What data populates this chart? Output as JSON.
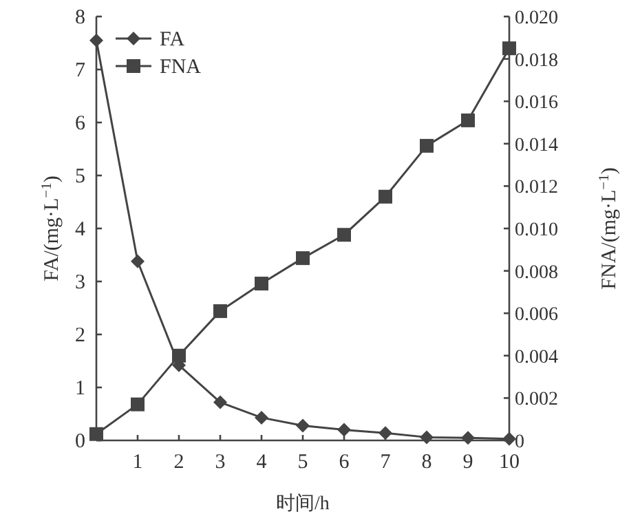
{
  "chart_data": {
    "type": "line",
    "xlabel": "时间/h",
    "ylabel": "FA/(mg·L$^{−1}$)",
    "y2label": "FNA/(mg·L$^{−1}$)",
    "x": [
      0,
      1,
      2,
      3,
      4,
      5,
      6,
      7,
      8,
      9,
      10
    ],
    "series": [
      {
        "name": "FA",
        "color": "#444444",
        "marker": "diamond",
        "values": [
          7.55,
          3.38,
          1.42,
          0.72,
          0.43,
          0.28,
          0.2,
          0.14,
          0.06,
          0.05,
          0.03
        ]
      },
      {
        "name": "FNA",
        "color": "#444444",
        "marker": "square",
        "axis": "y2",
        "values": [
          0.0003,
          0.0017,
          0.004,
          0.0061,
          0.0074,
          0.0086,
          0.0097,
          0.0115,
          0.0139,
          0.0151,
          0.0185
        ]
      }
    ],
    "xlim": [
      0,
      10
    ],
    "xticks": [
      1,
      2,
      3,
      4,
      5,
      6,
      7,
      8,
      9,
      10
    ],
    "ylim": [
      0,
      8
    ],
    "yticks": [
      0,
      1,
      2,
      3,
      4,
      5,
      6,
      7,
      8
    ],
    "y2lim": [
      0,
      0.02
    ],
    "y2ticks": [
      0,
      {
        "value": 0.002,
        "label": "0.002"
      },
      {
        "value": 0.004,
        "label": "0.004"
      },
      {
        "value": 0.006,
        "label": "0.006"
      },
      {
        "value": 0.008,
        "label": "0.008"
      },
      {
        "value": 0.01,
        "label": "0.010"
      },
      {
        "value": 0.012,
        "label": "0.012"
      },
      {
        "value": 0.014,
        "label": "0.014"
      },
      {
        "value": 0.016,
        "label": "0.016"
      },
      {
        "value": 0.018,
        "label": "0.018"
      },
      {
        "value": 0.02,
        "label": "0.020"
      }
    ],
    "legend": "top left",
    "grid": false,
    "line_style": "solid"
  }
}
